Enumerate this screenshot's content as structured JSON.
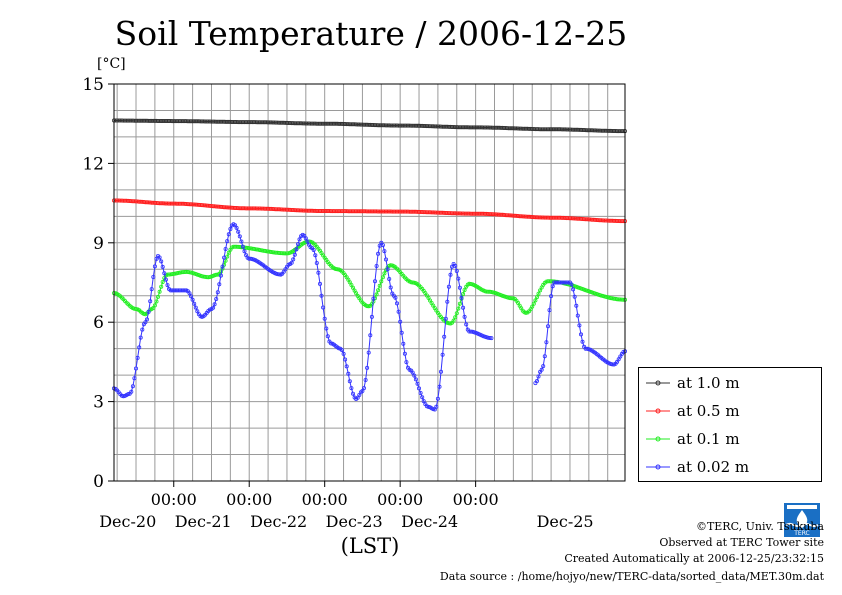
{
  "chart_data": {
    "type": "line",
    "title": "Soil Temperature / 2006-12-25",
    "ylabel": "[°C]",
    "xlabel": "(LST)",
    "ylim": [
      0,
      15
    ],
    "yticks": [
      "0",
      "3",
      "6",
      "9",
      "12",
      "15"
    ],
    "xlim": [
      "2006-12-19 05:00",
      "2006-12-25 23:30"
    ],
    "xticks": [
      {
        "x": "2006-12-20 00:00",
        "time": "00:00",
        "date": "Dec-20"
      },
      {
        "x": "2006-12-21 00:00",
        "time": "00:00",
        "date": "Dec-21"
      },
      {
        "x": "2006-12-22 00:00",
        "time": "00:00",
        "date": "Dec-22"
      },
      {
        "x": "2006-12-23 00:00",
        "time": "00:00",
        "date": "Dec-23"
      },
      {
        "x": "2006-12-24 00:00",
        "time": "00:00",
        "date": "Dec-24"
      }
    ],
    "xtick_extra_dates": [
      {
        "x": "2006-12-25 00:00",
        "date": "Dec-25"
      }
    ],
    "grid": true,
    "legend": "lower-right outside",
    "series": [
      {
        "name": "at 1.0 m",
        "color": "#333333",
        "points": [
          [
            "2006-12-19 05:00",
            13.62
          ],
          [
            "2006-12-20 00:00",
            13.6
          ],
          [
            "2006-12-21 00:00",
            13.56
          ],
          [
            "2006-12-22 00:00",
            13.5
          ],
          [
            "2006-12-23 00:00",
            13.43
          ],
          [
            "2006-12-24 00:00",
            13.36
          ],
          [
            "2006-12-25 00:00",
            13.29
          ],
          [
            "2006-12-25 23:30",
            13.22
          ]
        ]
      },
      {
        "name": "at 0.5 m",
        "color": "#ff2020",
        "points": [
          [
            "2006-12-19 05:00",
            10.6
          ],
          [
            "2006-12-20 00:00",
            10.48
          ],
          [
            "2006-12-21 00:00",
            10.3
          ],
          [
            "2006-12-22 00:00",
            10.2
          ],
          [
            "2006-12-23 00:00",
            10.18
          ],
          [
            "2006-12-24 00:00",
            10.1
          ],
          [
            "2006-12-25 00:00",
            9.95
          ],
          [
            "2006-12-25 23:30",
            9.82
          ]
        ]
      },
      {
        "name": "at 0.1 m",
        "color": "#22ee22",
        "points": [
          [
            "2006-12-19 05:00",
            7.1
          ],
          [
            "2006-12-19 12:00",
            6.5
          ],
          [
            "2006-12-19 15:00",
            6.3
          ],
          [
            "2006-12-19 17:00",
            6.5
          ],
          [
            "2006-12-19 22:00",
            7.8
          ],
          [
            "2006-12-20 04:00",
            7.9
          ],
          [
            "2006-12-20 11:00",
            7.7
          ],
          [
            "2006-12-20 14:00",
            7.8
          ],
          [
            "2006-12-20 19:00",
            8.85
          ],
          [
            "2006-12-21 12:00",
            8.6
          ],
          [
            "2006-12-21 19:00",
            9.05
          ],
          [
            "2006-12-22 04:00",
            8.0
          ],
          [
            "2006-12-22 14:00",
            6.6
          ],
          [
            "2006-12-22 21:00",
            8.15
          ],
          [
            "2006-12-23 04:00",
            7.5
          ],
          [
            "2006-12-23 16:00",
            5.95
          ],
          [
            "2006-12-23 22:00",
            7.45
          ],
          [
            "2006-12-24 04:00",
            7.15
          ],
          [
            "2006-12-24 12:00",
            6.9
          ],
          [
            "2006-12-24 16:00",
            6.35
          ],
          [
            "2006-12-24 23:00",
            7.55
          ],
          [
            "2006-12-25 23:30",
            6.85
          ]
        ]
      },
      {
        "name": "at 0.02 m",
        "color": "#3333ff",
        "points": [
          [
            "2006-12-19 05:00",
            3.5
          ],
          [
            "2006-12-19 08:00",
            3.2
          ],
          [
            "2006-12-19 10:00",
            3.3
          ],
          [
            "2006-12-19 15:00",
            6.0
          ],
          [
            "2006-12-19 19:00",
            8.5
          ],
          [
            "2006-12-19 23:00",
            7.2
          ],
          [
            "2006-12-20 04:00",
            7.2
          ],
          [
            "2006-12-20 09:00",
            6.2
          ],
          [
            "2006-12-20 12:00",
            6.5
          ],
          [
            "2006-12-20 19:00",
            9.7
          ],
          [
            "2006-12-21 00:00",
            8.4
          ],
          [
            "2006-12-21 10:00",
            7.8
          ],
          [
            "2006-12-21 13:00",
            8.2
          ],
          [
            "2006-12-21 17:00",
            9.3
          ],
          [
            "2006-12-21 20:00",
            8.8
          ],
          [
            "2006-12-22 02:00",
            5.2
          ],
          [
            "2006-12-22 05:00",
            5.0
          ],
          [
            "2006-12-22 10:00",
            3.1
          ],
          [
            "2006-12-22 12:00",
            3.4
          ],
          [
            "2006-12-22 18:00",
            9.0
          ],
          [
            "2006-12-22 22:00",
            7.0
          ],
          [
            "2006-12-23 03:00",
            4.2
          ],
          [
            "2006-12-23 09:00",
            2.8
          ],
          [
            "2006-12-23 11:00",
            2.7
          ],
          [
            "2006-12-23 17:00",
            8.2
          ],
          [
            "2006-12-23 22:00",
            5.65
          ],
          [
            "2006-12-24 05:00",
            5.4
          ],
          [
            "2006-12-24 19:00",
            3.7
          ],
          [
            "2006-12-24 21:00",
            4.2
          ],
          [
            "2006-12-25 01:00",
            7.5
          ],
          [
            "2006-12-25 06:00",
            7.5
          ],
          [
            "2006-12-25 11:00",
            5.0
          ],
          [
            "2006-12-25 20:00",
            4.4
          ],
          [
            "2006-12-25 23:30",
            4.9
          ]
        ],
        "gaps": [
          [
            "2006-12-24 05:00",
            "2006-12-24 19:00"
          ]
        ]
      }
    ]
  },
  "credits": {
    "copyright": "©TERC, Univ. Tsukuba",
    "observed": "Observed at TERC Tower site",
    "created": "Created Automatically at 2006-12-25/23:32:15",
    "source": "Data source : /home/hojyo/new/TERC-data/sorted_data/MET.30m.dat",
    "logo_text": "TERC"
  }
}
